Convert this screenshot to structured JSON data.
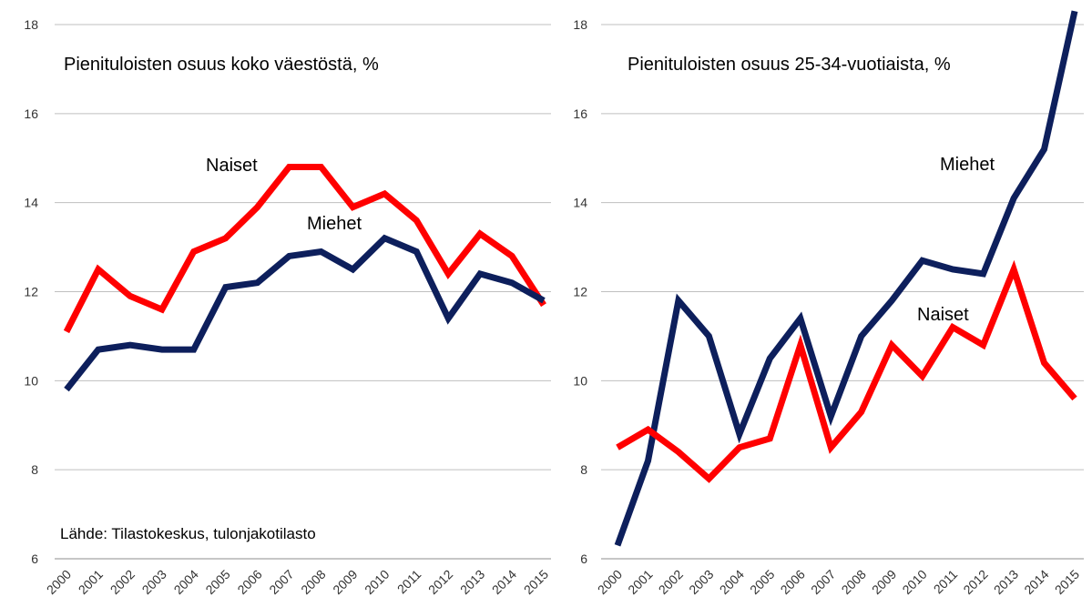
{
  "chart_data": [
    {
      "type": "line",
      "title": "Pienituloisten osuus koko väestöstä, %",
      "source": "Lähde: Tilastokeskus, tulonjakotilasto",
      "x": [
        "2000",
        "2001",
        "2002",
        "2003",
        "2004",
        "2005",
        "2006",
        "2007",
        "2008",
        "2009",
        "2010",
        "2011",
        "2012",
        "2013",
        "2014",
        "2015"
      ],
      "yticks": [
        6,
        8,
        10,
        12,
        14,
        16,
        18
      ],
      "ylim": [
        6,
        18.3
      ],
      "grid": true,
      "series": [
        {
          "name": "Naiset",
          "color": "#ff0000",
          "values": [
            11.1,
            12.5,
            11.9,
            11.6,
            12.9,
            13.2,
            13.9,
            14.8,
            14.8,
            13.9,
            14.2,
            13.6,
            12.4,
            13.3,
            12.8,
            11.7
          ]
        },
        {
          "name": "Miehet",
          "color": "#0d1f5c",
          "values": [
            9.8,
            10.7,
            10.8,
            10.7,
            10.7,
            12.1,
            12.2,
            12.8,
            12.9,
            12.5,
            13.2,
            12.9,
            11.4,
            12.4,
            12.2,
            11.8
          ]
        }
      ]
    },
    {
      "type": "line",
      "title": "Pienituloisten osuus 25-34-vuotiaista, %",
      "x": [
        "2000",
        "2001",
        "2002",
        "2003",
        "2004",
        "2005",
        "2006",
        "2007",
        "2008",
        "2009",
        "2010",
        "2011",
        "2012",
        "2013",
        "2014",
        "2015"
      ],
      "yticks": [
        6,
        8,
        10,
        12,
        14,
        16,
        18
      ],
      "ylim": [
        6,
        18.3
      ],
      "grid": true,
      "series": [
        {
          "name": "Miehet",
          "color": "#0d1f5c",
          "values": [
            6.3,
            8.2,
            11.8,
            11.0,
            8.8,
            10.5,
            11.4,
            9.2,
            11.0,
            11.8,
            12.7,
            12.5,
            12.4,
            14.1,
            15.2,
            18.3
          ]
        },
        {
          "name": "Naiset",
          "color": "#ff0000",
          "values": [
            8.5,
            8.9,
            8.4,
            7.8,
            8.5,
            8.7,
            10.8,
            8.5,
            9.3,
            10.8,
            10.1,
            11.2,
            10.8,
            12.5,
            10.4,
            9.6
          ]
        }
      ]
    }
  ]
}
